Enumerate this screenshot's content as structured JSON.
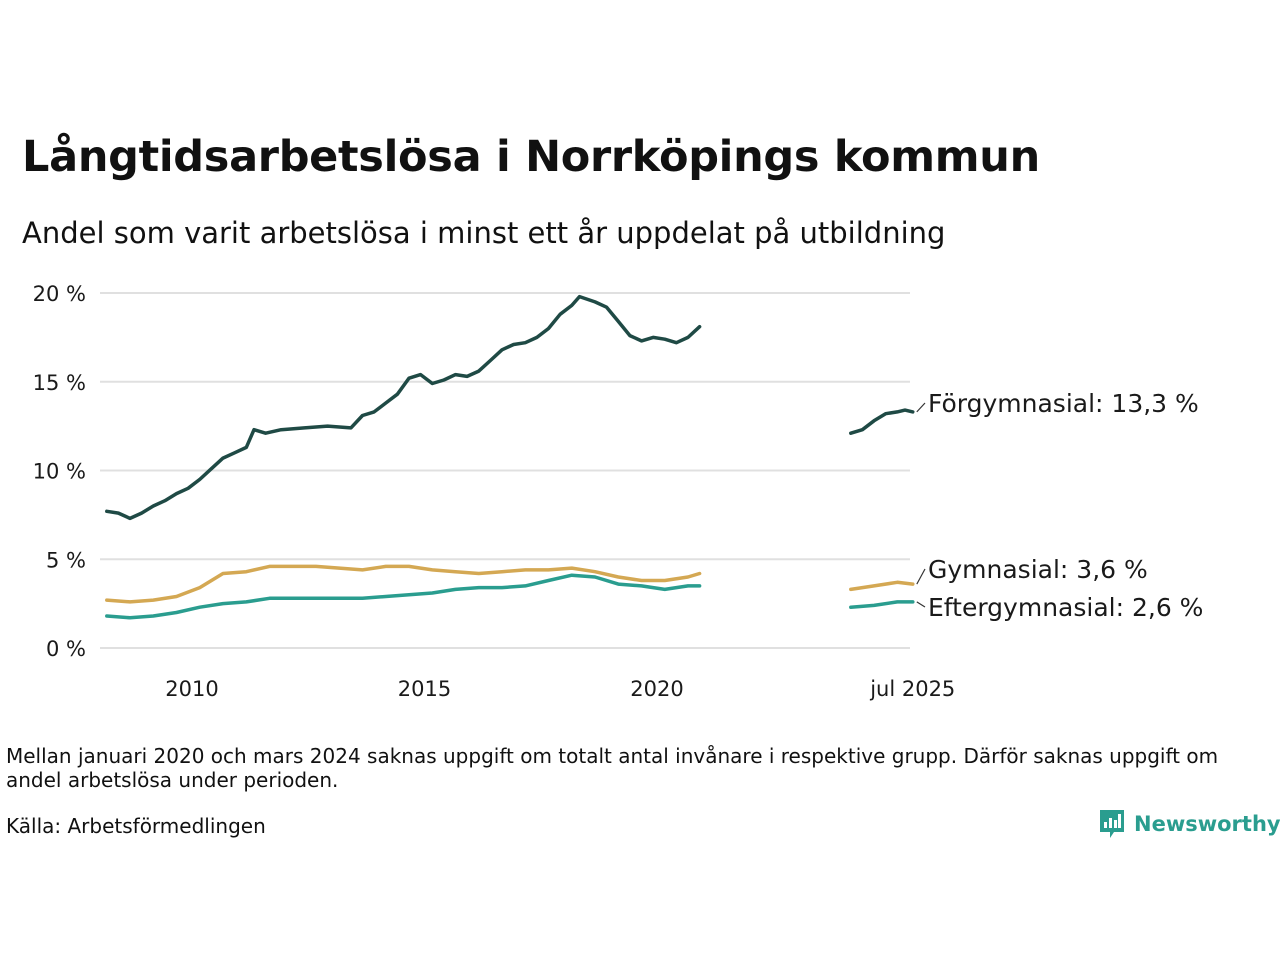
{
  "title": "Långtidsarbetslösa i Norrköpings kommun",
  "subtitle": "Andel som varit arbetslösa i minst ett år uppdelat på utbildning",
  "note": "Mellan januari 2020 och mars 2024 saknas uppgift om totalt antal invånare i respektive grupp. Därför saknas uppgift om andel arbetslösa under perioden.",
  "source": "Källa: Arbetsförmedlingen",
  "brand": {
    "name": "Newsworthy",
    "icon": "newsworthy-logo-icon",
    "color": "#2a9d8f"
  },
  "chart_data": {
    "type": "line",
    "title": "Långtidsarbetslösa i Norrköpings kommun",
    "subtitle": "Andel som varit arbetslösa i minst ett år uppdelat på utbildning",
    "xlabel": "",
    "ylabel": "",
    "x_ticks": [
      "2010",
      "2015",
      "2020",
      "jul 2025"
    ],
    "y_ticks": [
      "0 %",
      "5 %",
      "10 %",
      "15 %",
      "20 %"
    ],
    "ylim": [
      0,
      20
    ],
    "grid": "horizontal",
    "legend": "direct labels at line ends, right",
    "series": [
      {
        "name": "Förgymnasial",
        "end_label": "Förgymnasial: 13,3 %",
        "color": "#1f4a45",
        "points": [
          [
            "2008-03",
            7.7
          ],
          [
            "2008-06",
            7.6
          ],
          [
            "2008-09",
            7.3
          ],
          [
            "2008-12",
            7.6
          ],
          [
            "2009-03",
            8.0
          ],
          [
            "2009-06",
            8.3
          ],
          [
            "2009-09",
            8.7
          ],
          [
            "2009-12",
            9.0
          ],
          [
            "2010-03",
            9.5
          ],
          [
            "2010-06",
            10.1
          ],
          [
            "2010-09",
            10.7
          ],
          [
            "2010-12",
            11.0
          ],
          [
            "2011-03",
            11.3
          ],
          [
            "2011-05",
            12.3
          ],
          [
            "2011-08",
            12.1
          ],
          [
            "2011-12",
            12.3
          ],
          [
            "2012-06",
            12.4
          ],
          [
            "2012-12",
            12.5
          ],
          [
            "2013-06",
            12.4
          ],
          [
            "2013-09",
            13.1
          ],
          [
            "2013-12",
            13.3
          ],
          [
            "2014-03",
            13.8
          ],
          [
            "2014-06",
            14.3
          ],
          [
            "2014-09",
            15.2
          ],
          [
            "2014-12",
            15.4
          ],
          [
            "2015-03",
            14.9
          ],
          [
            "2015-06",
            15.1
          ],
          [
            "2015-09",
            15.4
          ],
          [
            "2015-12",
            15.3
          ],
          [
            "2016-03",
            15.6
          ],
          [
            "2016-06",
            16.2
          ],
          [
            "2016-09",
            16.8
          ],
          [
            "2016-12",
            17.1
          ],
          [
            "2017-03",
            17.2
          ],
          [
            "2017-06",
            17.5
          ],
          [
            "2017-09",
            18.0
          ],
          [
            "2017-12",
            18.8
          ],
          [
            "2018-03",
            19.3
          ],
          [
            "2018-05",
            19.8
          ],
          [
            "2018-09",
            19.5
          ],
          [
            "2018-12",
            19.2
          ],
          [
            "2019-03",
            18.4
          ],
          [
            "2019-06",
            17.6
          ],
          [
            "2019-09",
            17.3
          ],
          [
            "2019-12",
            17.5
          ],
          [
            "2020-03",
            17.4
          ],
          [
            "2020-06",
            17.2
          ],
          [
            "2020-09",
            17.5
          ],
          [
            "2020-12",
            18.1
          ],
          null,
          [
            "2024-03",
            12.1
          ],
          [
            "2024-06",
            12.3
          ],
          [
            "2024-09",
            12.8
          ],
          [
            "2024-12",
            13.2
          ],
          [
            "2025-03",
            13.3
          ],
          [
            "2025-05",
            13.4
          ],
          [
            "2025-07",
            13.3
          ]
        ]
      },
      {
        "name": "Gymnasial",
        "end_label": "Gymnasial:  3,6 %",
        "color": "#d4a853",
        "points": [
          [
            "2008-03",
            2.7
          ],
          [
            "2008-09",
            2.6
          ],
          [
            "2009-03",
            2.7
          ],
          [
            "2009-09",
            2.9
          ],
          [
            "2010-03",
            3.4
          ],
          [
            "2010-09",
            4.2
          ],
          [
            "2011-03",
            4.3
          ],
          [
            "2011-09",
            4.6
          ],
          [
            "2012-03",
            4.6
          ],
          [
            "2012-09",
            4.6
          ],
          [
            "2013-03",
            4.5
          ],
          [
            "2013-09",
            4.4
          ],
          [
            "2014-03",
            4.6
          ],
          [
            "2014-09",
            4.6
          ],
          [
            "2015-03",
            4.4
          ],
          [
            "2015-09",
            4.3
          ],
          [
            "2016-03",
            4.2
          ],
          [
            "2016-09",
            4.3
          ],
          [
            "2017-03",
            4.4
          ],
          [
            "2017-09",
            4.4
          ],
          [
            "2018-03",
            4.5
          ],
          [
            "2018-09",
            4.3
          ],
          [
            "2019-03",
            4.0
          ],
          [
            "2019-09",
            3.8
          ],
          [
            "2020-03",
            3.8
          ],
          [
            "2020-09",
            4.0
          ],
          [
            "2020-12",
            4.2
          ],
          null,
          [
            "2024-03",
            3.3
          ],
          [
            "2024-09",
            3.5
          ],
          [
            "2025-03",
            3.7
          ],
          [
            "2025-07",
            3.6
          ]
        ]
      },
      {
        "name": "Eftergymnasial",
        "end_label": "Eftergymnasial:  2,6 %",
        "color": "#2a9d8f",
        "points": [
          [
            "2008-03",
            1.8
          ],
          [
            "2008-09",
            1.7
          ],
          [
            "2009-03",
            1.8
          ],
          [
            "2009-09",
            2.0
          ],
          [
            "2010-03",
            2.3
          ],
          [
            "2010-09",
            2.5
          ],
          [
            "2011-03",
            2.6
          ],
          [
            "2011-09",
            2.8
          ],
          [
            "2012-03",
            2.8
          ],
          [
            "2012-09",
            2.8
          ],
          [
            "2013-03",
            2.8
          ],
          [
            "2013-09",
            2.8
          ],
          [
            "2014-03",
            2.9
          ],
          [
            "2014-09",
            3.0
          ],
          [
            "2015-03",
            3.1
          ],
          [
            "2015-09",
            3.3
          ],
          [
            "2016-03",
            3.4
          ],
          [
            "2016-09",
            3.4
          ],
          [
            "2017-03",
            3.5
          ],
          [
            "2017-09",
            3.8
          ],
          [
            "2018-03",
            4.1
          ],
          [
            "2018-09",
            4.0
          ],
          [
            "2019-03",
            3.6
          ],
          [
            "2019-09",
            3.5
          ],
          [
            "2020-03",
            3.3
          ],
          [
            "2020-09",
            3.5
          ],
          [
            "2020-12",
            3.5
          ],
          null,
          [
            "2024-03",
            2.3
          ],
          [
            "2024-09",
            2.4
          ],
          [
            "2025-03",
            2.6
          ],
          [
            "2025-07",
            2.6
          ]
        ]
      }
    ]
  }
}
